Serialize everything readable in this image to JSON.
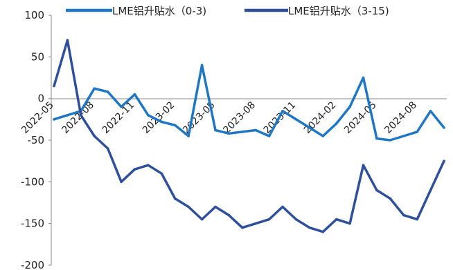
{
  "chart_data": {
    "type": "line",
    "title": "",
    "xlabel": "",
    "ylabel": "",
    "ylim": [
      -200,
      100
    ],
    "yticks": [
      "100",
      "50",
      "0",
      "-50",
      "-100",
      "-150",
      "-200"
    ],
    "xticks": [
      "2022-05",
      "2022-08",
      "2022-11",
      "2023-02",
      "2023-05",
      "2023-08",
      "2023-11",
      "2024-02",
      "2024-05",
      "2024-08"
    ],
    "legend_position": "top",
    "grid": false,
    "x": [
      "2022-05",
      "2022-06",
      "2022-07",
      "2022-08",
      "2022-09",
      "2022-10",
      "2022-11",
      "2022-12",
      "2023-01",
      "2023-02",
      "2023-03",
      "2023-04",
      "2023-05",
      "2023-06",
      "2023-07",
      "2023-08",
      "2023-09",
      "2023-10",
      "2023-11",
      "2023-12",
      "2024-01",
      "2024-02",
      "2024-03",
      "2024-04",
      "2024-05",
      "2024-06",
      "2024-07",
      "2024-08",
      "2024-09",
      "2024-10"
    ],
    "series": [
      {
        "name": "LME铝升贴水（0-3)",
        "color": "#1f77c4",
        "values": [
          -25,
          -20,
          -15,
          12,
          8,
          -10,
          5,
          -20,
          -28,
          -32,
          -45,
          40,
          -38,
          -42,
          -40,
          -38,
          -45,
          -15,
          -25,
          -35,
          -45,
          -30,
          -10,
          25,
          -48,
          -50,
          -45,
          -40,
          -15,
          -35
        ]
      },
      {
        "name": "LME铝升贴水（3-15)",
        "color": "#2f4f9a",
        "values": [
          15,
          70,
          -20,
          -45,
          -60,
          -100,
          -85,
          -80,
          -90,
          -120,
          -130,
          -145,
          -130,
          -140,
          -155,
          -150,
          -145,
          -130,
          -145,
          -155,
          -160,
          -145,
          -150,
          -80,
          -110,
          -120,
          -140,
          -145,
          -110,
          -75
        ]
      }
    ]
  }
}
